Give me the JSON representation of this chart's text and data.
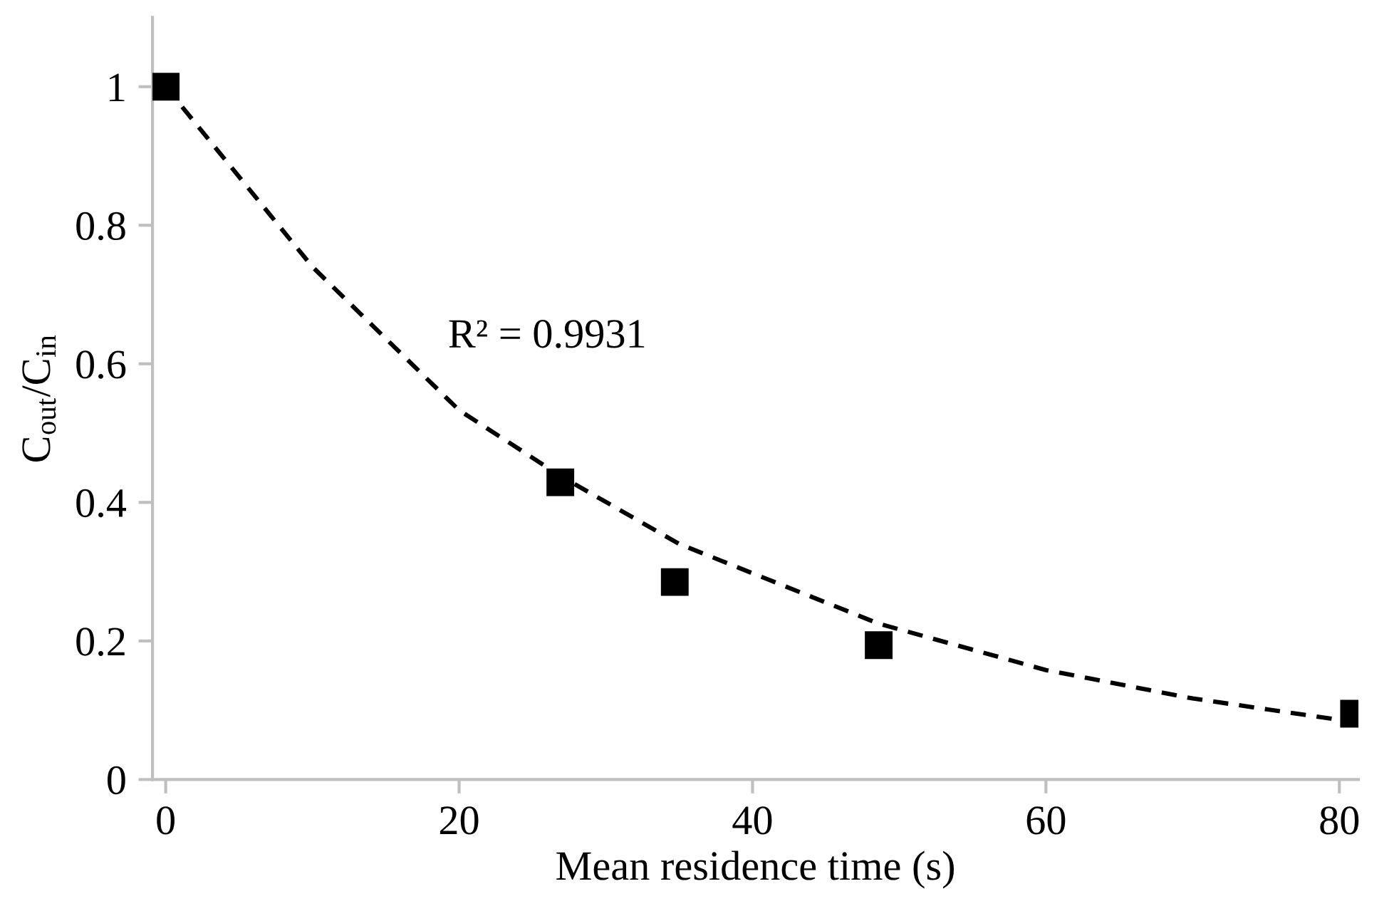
{
  "chart_data": {
    "type": "scatter",
    "xlabel": "Mean residence time (s)",
    "ylabel": "C$_{out}$/C$_{in}$",
    "x": [
      0,
      26.9,
      34.7,
      48.6,
      81.0
    ],
    "series": [
      {
        "color": "#000000",
        "marker": "square",
        "values": [
          1.0,
          0.429,
          0.285,
          0.194,
          0.095
        ]
      },
      {
        "type": "line",
        "color": "#000000",
        "line_style": "dashed",
        "marker": "none",
        "x": [
          0,
          10,
          20,
          27,
          35,
          48.6,
          60,
          70,
          81
        ],
        "values": [
          1.0,
          0.74,
          0.533,
          0.437,
          0.34,
          0.225,
          0.158,
          0.117,
          0.083
        ]
      }
    ],
    "annotations": [
      "R² = 0.9931"
    ],
    "xlim": [
      -0.9,
      81.3
    ],
    "ylim": [
      0,
      1.1
    ],
    "xticks": [
      0,
      20,
      40,
      60,
      80
    ],
    "yticks": [
      0,
      0.2,
      0.4,
      0.6,
      0.8,
      1
    ],
    "grid": false,
    "legend": false
  }
}
